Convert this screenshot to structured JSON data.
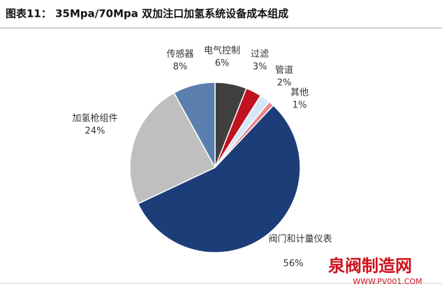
{
  "chart_data": {
    "type": "pie",
    "title": "图表11：  35Mpa/70Mpa 双加注口加氢系统设备成本组成",
    "categories": [
      "电气控制",
      "过滤",
      "管道",
      "其他",
      "阀门和计量仪表",
      "加氢枪组件",
      "传感器"
    ],
    "values": [
      6,
      3,
      2,
      1,
      56,
      24,
      8
    ],
    "value_labels": [
      "6%",
      "3%",
      "2%",
      "1%",
      "56%",
      "24%",
      "8%"
    ],
    "colors": [
      "#3f3f3f",
      "#c1121f",
      "#d3e8f7",
      "#e9868c",
      "#1d3d78",
      "#bfbfbf",
      "#5a7eae"
    ]
  },
  "watermark": {
    "text": "泉阀制造网",
    "url": "WWW.PV001.COM"
  }
}
